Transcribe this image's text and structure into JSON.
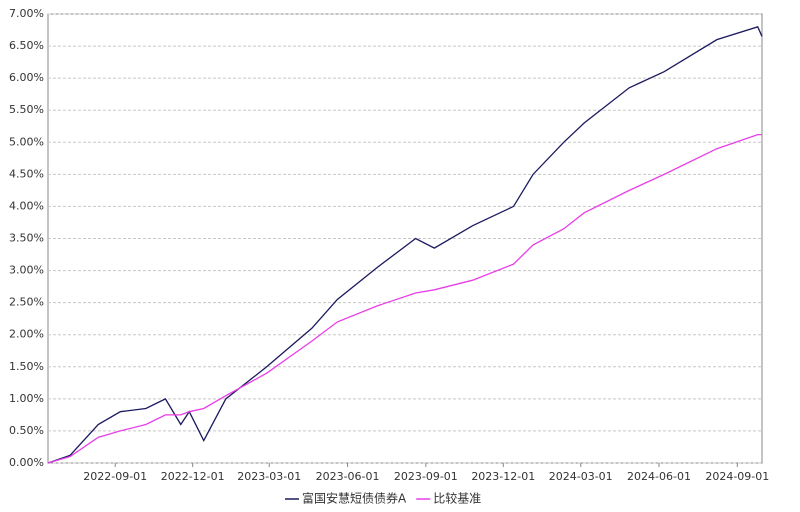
{
  "chart_data": {
    "type": "line",
    "x": [
      "2022-06-14",
      "2022-07-10",
      "2022-08-12",
      "2022-09-07",
      "2022-10-07",
      "2022-10-30",
      "2022-11-17",
      "2022-11-27",
      "2022-12-14",
      "2023-01-09",
      "2023-02-26",
      "2023-04-20",
      "2023-05-20",
      "2023-07-06",
      "2023-08-20",
      "2023-09-11",
      "2023-10-26",
      "2023-12-13",
      "2024-01-05",
      "2024-02-10",
      "2024-03-05",
      "2024-04-27",
      "2024-06-07",
      "2024-08-08",
      "2024-09-25",
      "2024-09-30"
    ],
    "series": [
      {
        "name": "富国安慧短债债券A",
        "color": "#1a1a5e",
        "values": [
          0,
          0.12,
          0.6,
          0.8,
          0.85,
          1.0,
          0.6,
          0.8,
          0.35,
          1.0,
          1.5,
          2.1,
          2.55,
          3.05,
          3.5,
          3.35,
          3.7,
          4.0,
          4.5,
          5.0,
          5.3,
          5.85,
          6.1,
          6.6,
          6.8,
          6.65
        ]
      },
      {
        "name": "比较基准",
        "color": "#e83ee8",
        "values": [
          0,
          0.1,
          0.4,
          0.5,
          0.6,
          0.75,
          0.75,
          0.8,
          0.85,
          1.05,
          1.4,
          1.9,
          2.2,
          2.45,
          2.65,
          2.7,
          2.85,
          3.1,
          3.4,
          3.65,
          3.9,
          4.25,
          4.5,
          4.9,
          5.12,
          5.12
        ]
      }
    ],
    "xlim": [
      "2022-06-14",
      "2024-09-30"
    ],
    "xticks": [
      "2022-09-01",
      "2022-12-01",
      "2023-03-01",
      "2023-06-01",
      "2023-09-01",
      "2023-12-01",
      "2024-03-01",
      "2024-06-01",
      "2024-09-01"
    ],
    "ylim": [
      0,
      7
    ],
    "yticks": [
      {
        "value": 0,
        "label": "0.00%"
      },
      {
        "value": 0.5,
        "label": "0.50%"
      },
      {
        "value": 1,
        "label": "1.00%"
      },
      {
        "value": 1.5,
        "label": "1.50%"
      },
      {
        "value": 2,
        "label": "2.00%"
      },
      {
        "value": 2.5,
        "label": "2.50%"
      },
      {
        "value": 3,
        "label": "3.00%"
      },
      {
        "value": 3.5,
        "label": "3.50%"
      },
      {
        "value": 4,
        "label": "4.00%"
      },
      {
        "value": 4.5,
        "label": "4.50%"
      },
      {
        "value": 5,
        "label": "5.00%"
      },
      {
        "value": 5.5,
        "label": "5.50%"
      },
      {
        "value": 6,
        "label": "6.00%"
      },
      {
        "value": 6.5,
        "label": "6.50%"
      },
      {
        "value": 7,
        "label": "7.00%"
      }
    ],
    "grid": true,
    "legend": "bottom"
  }
}
